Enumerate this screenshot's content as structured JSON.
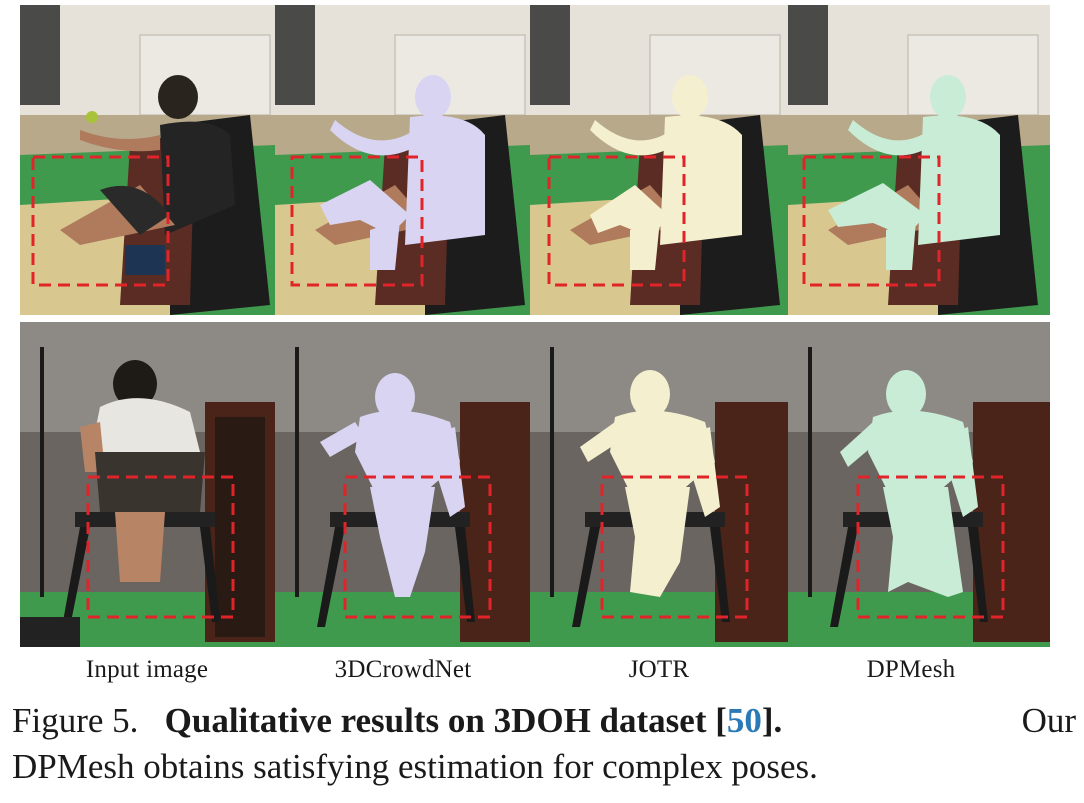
{
  "columns": [
    {
      "label": "Input image",
      "mesh": "none"
    },
    {
      "label": "3DCrowdNet",
      "mesh": "#d9d4f2"
    },
    {
      "label": "JOTR",
      "mesh": "#f4efcf"
    },
    {
      "label": "DPMesh",
      "mesh": "#c9ecd6"
    }
  ],
  "caption": {
    "figure_label": "Figure 5.",
    "title": "Qualitative results on 3DOH dataset [",
    "citation": "50",
    "title_end": "].",
    "text_line1": "Our",
    "text_line2": "DPMesh obtains satisfying estimation for complex poses."
  },
  "colors": {
    "highlight_box": "#e0242a",
    "floor": "#3f9a4e",
    "citation": "#2a7ab8"
  }
}
